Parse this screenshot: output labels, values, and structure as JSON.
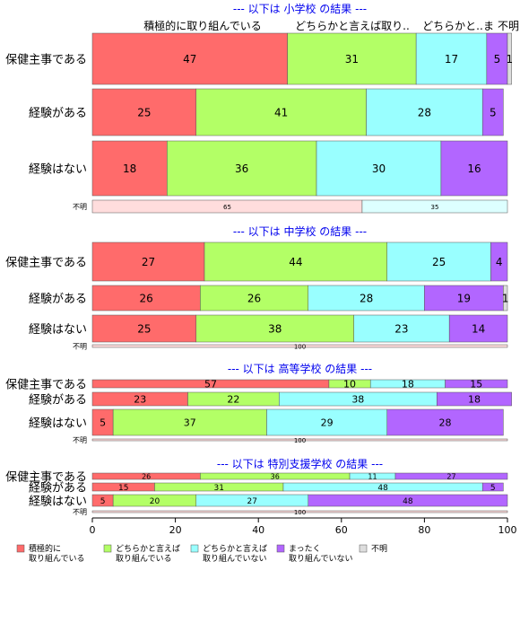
{
  "chart_data": {
    "type": "bar",
    "orientation": "horizontal-stacked-100",
    "xlim": [
      0,
      100
    ],
    "x_ticks": [
      "0",
      "20",
      "40",
      "60",
      "80",
      "100"
    ],
    "column_headers": [
      "積極的に取り組んでいる",
      "どちらかと言えば取り..",
      "どちらかと..",
      "ま",
      "不明"
    ],
    "legend": [
      {
        "label": "積極的に\n取り組んでいる",
        "color": "#ff6b6b"
      },
      {
        "label": "どちらかと言えば\n取り組んでいる",
        "color": "#b3ff66"
      },
      {
        "label": "どちらかと言えば\n取り組んでいない",
        "color": "#99ffff"
      },
      {
        "label": "まったく\n取り組んでいない",
        "color": "#b266ff"
      },
      {
        "label": "不明",
        "color": "#dddddd"
      }
    ],
    "sections": [
      {
        "title": "--- 以下は 小学校 の結果 ---",
        "rows": [
          {
            "label": "保健主事である",
            "values": [
              47,
              31,
              17,
              5,
              1
            ]
          },
          {
            "label": "経験がある",
            "values": [
              25,
              41,
              28,
              5,
              0
            ]
          },
          {
            "label": "経験はない",
            "values": [
              18,
              36,
              30,
              16,
              0
            ]
          },
          {
            "label": "不明",
            "values": [
              65,
              35
            ],
            "minor": true
          }
        ]
      },
      {
        "title": "--- 以下は 中学校 の結果 ---",
        "rows": [
          {
            "label": "保健主事である",
            "values": [
              27,
              44,
              25,
              4,
              0
            ]
          },
          {
            "label": "経験がある",
            "values": [
              26,
              26,
              28,
              19,
              1
            ]
          },
          {
            "label": "経験はない",
            "values": [
              25,
              38,
              23,
              14,
              0
            ]
          },
          {
            "label": "不明",
            "values": [
              100
            ],
            "minor": true
          }
        ]
      },
      {
        "title": "--- 以下は 高等学校 の結果 ---",
        "rows": [
          {
            "label": "保健主事である",
            "values": [
              57,
              10,
              18,
              15,
              0
            ]
          },
          {
            "label": "経験がある",
            "values": [
              23,
              22,
              38,
              18,
              0
            ]
          },
          {
            "label": "経験はない",
            "values": [
              5,
              37,
              29,
              28,
              0
            ]
          },
          {
            "label": "不明",
            "values": [
              100
            ],
            "minor": true
          }
        ]
      },
      {
        "title": "--- 以下は 特別支援学校 の結果 ---",
        "rows": [
          {
            "label": "保健主事である",
            "values": [
              26,
              36,
              11,
              27,
              0
            ]
          },
          {
            "label": "経験がある",
            "values": [
              15,
              31,
              48,
              5,
              0
            ]
          },
          {
            "label": "経験はない",
            "values": [
              5,
              20,
              27,
              48,
              0
            ]
          },
          {
            "label": "不明",
            "values": [
              100
            ],
            "minor": true
          }
        ]
      }
    ]
  }
}
